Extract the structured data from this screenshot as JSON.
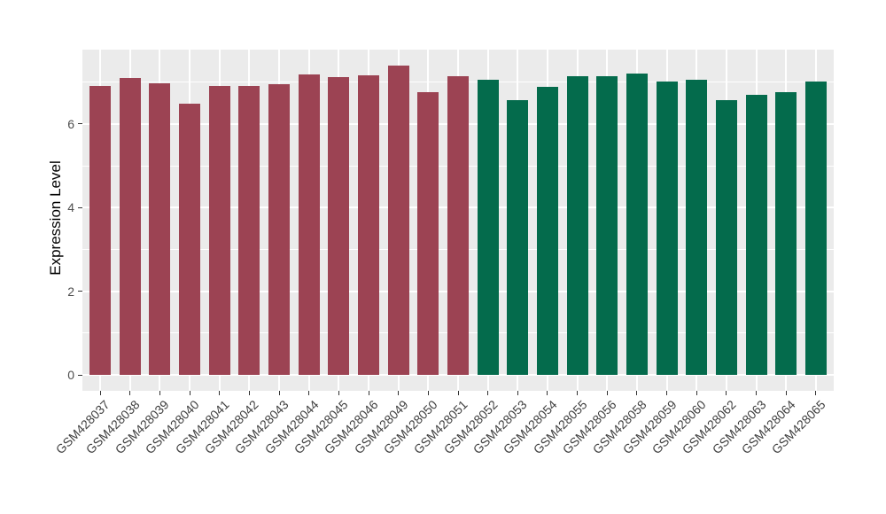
{
  "figure": {
    "background": "#FFFFFF",
    "panel_background": "#EBEBEB",
    "grid_color": "#FFFFFF",
    "tick_mark_color": "#333333",
    "tick_label_color": "#4D4D4D",
    "axis_title_color": "#000000"
  },
  "chart_data": {
    "type": "bar",
    "title": "",
    "xlabel": "",
    "ylabel": "Expression Level",
    "categories": [
      "GSM428037",
      "GSM428038",
      "GSM428039",
      "GSM428040",
      "GSM428041",
      "GSM428042",
      "GSM428043",
      "GSM428044",
      "GSM428045",
      "GSM428046",
      "GSM428049",
      "GSM428050",
      "GSM428051",
      "GSM428052",
      "GSM428053",
      "GSM428054",
      "GSM428055",
      "GSM428056",
      "GSM428058",
      "GSM428059",
      "GSM428060",
      "GSM428062",
      "GSM428063",
      "GSM428064",
      "GSM428065"
    ],
    "values": [
      6.91,
      7.11,
      6.98,
      6.49,
      6.92,
      6.92,
      6.96,
      7.18,
      7.13,
      7.17,
      7.4,
      6.76,
      7.14,
      7.07,
      6.57,
      6.88,
      7.14,
      7.14,
      7.21,
      7.02,
      7.07,
      6.57,
      6.7,
      6.77,
      7.02
    ],
    "groups": [
      "maroon",
      "maroon",
      "maroon",
      "maroon",
      "maroon",
      "maroon",
      "maroon",
      "maroon",
      "maroon",
      "maroon",
      "maroon",
      "maroon",
      "maroon",
      "green",
      "green",
      "green",
      "green",
      "green",
      "green",
      "green",
      "green",
      "green",
      "green",
      "green",
      "green"
    ],
    "group_colors": {
      "maroon": "#9C4353",
      "green": "#046B4C"
    },
    "ylim": [
      0,
      7.78
    ],
    "yticks": [
      0,
      2,
      4,
      6
    ],
    "ytick_labels": [
      "0",
      "2",
      "4",
      "6"
    ],
    "yticks_minor": [
      1,
      3,
      5,
      7
    ],
    "x_tick_angle": 45,
    "grid": true,
    "legend": "none"
  }
}
